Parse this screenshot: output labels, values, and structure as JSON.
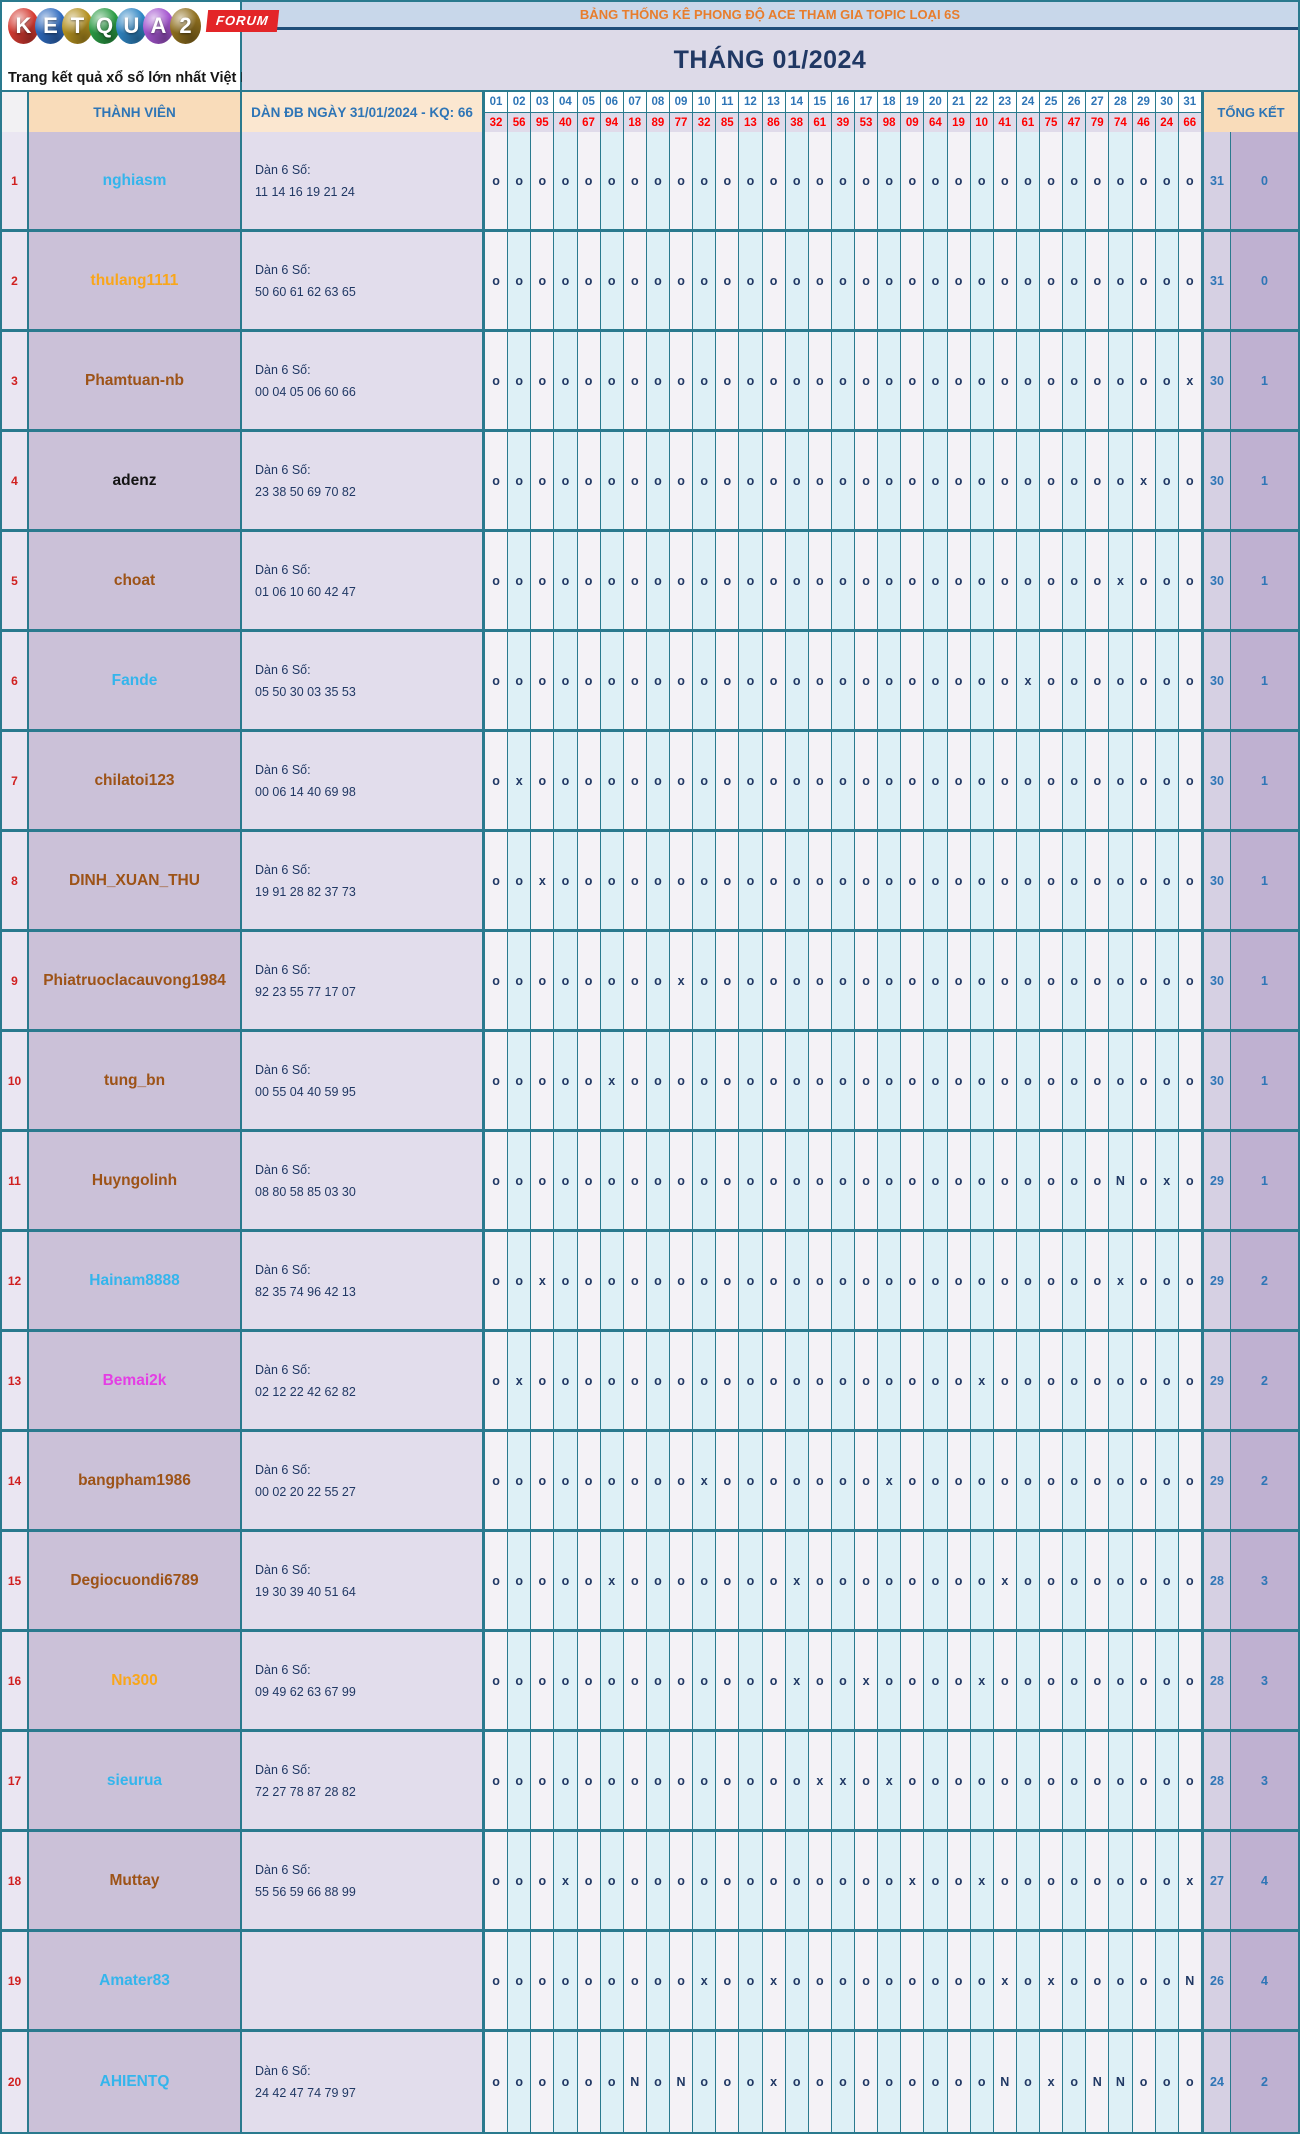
{
  "logo": {
    "letters": [
      {
        "ch": "K",
        "color": "#d43a31"
      },
      {
        "ch": "E",
        "color": "#2f6bbf"
      },
      {
        "ch": "T",
        "color": "#b3901f"
      },
      {
        "ch": "Q",
        "color": "#2a9b44"
      },
      {
        "ch": "U",
        "color": "#2f86c4"
      },
      {
        "ch": "A",
        "color": "#a455cf"
      },
      {
        "ch": "2",
        "color": "#8f6f1e"
      }
    ],
    "forum_badge": "FORUM",
    "tagline": "Trang kết quả xổ số lớn nhất Việt Nam"
  },
  "header": {
    "banner": "BẢNG THỐNG KÊ PHONG ĐỘ ACE THAM GIA TOPIC LOẠI 6S",
    "month_title": "THÁNG 01/2024",
    "member_col_label": "THÀNH VIÊN",
    "dan_col_label": "DÀN ĐB NGÀY 31/01/2024 - KQ: 66",
    "total_col_label": "TỔNG KẾT",
    "days": [
      "01",
      "02",
      "03",
      "04",
      "05",
      "06",
      "07",
      "08",
      "09",
      "10",
      "11",
      "12",
      "13",
      "14",
      "15",
      "16",
      "17",
      "18",
      "19",
      "20",
      "21",
      "22",
      "23",
      "24",
      "25",
      "26",
      "27",
      "28",
      "29",
      "30",
      "31"
    ],
    "kq_values": [
      "32",
      "56",
      "95",
      "40",
      "67",
      "94",
      "18",
      "89",
      "77",
      "32",
      "85",
      "13",
      "86",
      "38",
      "61",
      "39",
      "53",
      "98",
      "09",
      "64",
      "19",
      "10",
      "41",
      "61",
      "75",
      "47",
      "79",
      "74",
      "46",
      "24",
      "66"
    ]
  },
  "rows": [
    {
      "num": "1",
      "name": "nghiasm",
      "color": "#34b5ec",
      "dan_label": "Dàn 6 Số:",
      "dan": "11 14 16 19 21 24",
      "marks": "ooooooooooooooooooooooooooooooo",
      "total_o": "31",
      "total_x": "0"
    },
    {
      "num": "2",
      "name": "thulang1111",
      "color": "#f9a61a",
      "dan_label": "Dàn 6 Số:",
      "dan": "50 60 61 62 63 65",
      "marks": "ooooooooooooooooooooooooooooooo",
      "total_o": "31",
      "total_x": "0"
    },
    {
      "num": "3",
      "name": "Phamtuan-nb",
      "color": "#9d5317",
      "dan_label": "Dàn 6 Số:",
      "dan": "00 04 05 06 60 66",
      "marks": "oooooooooooooooooooooooooooooox",
      "total_o": "30",
      "total_x": "1"
    },
    {
      "num": "4",
      "name": "adenz",
      "color": "#141414",
      "dan_label": "Dàn 6 Số:",
      "dan": "23 38 50 69 70 82",
      "marks": "ooooooooooooooooooooooooooooxoo",
      "total_o": "30",
      "total_x": "1"
    },
    {
      "num": "5",
      "name": "choat",
      "color": "#9d5317",
      "dan_label": "Dàn 6 Số:",
      "dan": "01 06 10 60 42 47",
      "marks": "oooooooooooooooooooooooooooxooo",
      "total_o": "30",
      "total_x": "1"
    },
    {
      "num": "6",
      "name": "Fande",
      "color": "#34b5ec",
      "dan_label": "Dàn 6 Số:",
      "dan": "05 50 30 03 35 53",
      "marks": "oooooooooooooooooooooooxooooooo",
      "total_o": "30",
      "total_x": "1"
    },
    {
      "num": "7",
      "name": "chilatoi123",
      "color": "#9d5317",
      "dan_label": "Dàn 6 Số:",
      "dan": "00 06 14 40 69 98",
      "marks": "oxooooooooooooooooooooooooooooo",
      "total_o": "30",
      "total_x": "1"
    },
    {
      "num": "8",
      "name": "DINH_XUAN_THU",
      "color": "#9d5317",
      "dan_label": "Dàn 6 Số:",
      "dan": "19 91 28 82 37 73",
      "marks": "ooxoooooooooooooooooooooooooooo",
      "total_o": "30",
      "total_x": "1"
    },
    {
      "num": "9",
      "name": "Phiatruoclacauvong1984",
      "color": "#9d5317",
      "dan_label": "Dàn 6 Số:",
      "dan": "92 23 55 77 17 07",
      "marks": "ooooooooxoooooooooooooooooooooo",
      "total_o": "30",
      "total_x": "1"
    },
    {
      "num": "10",
      "name": "tung_bn",
      "color": "#9d5317",
      "dan_label": "Dàn 6 Số:",
      "dan": "00 55 04 40 59 95",
      "marks": "oooooxooooooooooooooooooooooooo",
      "total_o": "30",
      "total_x": "1"
    },
    {
      "num": "11",
      "name": "Huyngolinh",
      "color": "#9d5317",
      "dan_label": "Dàn 6 Số:",
      "dan": "08 80 58 85 03 30",
      "marks": "oooooooooooooooooooooooooooNoxo",
      "total_o": "29",
      "total_x": "1"
    },
    {
      "num": "12",
      "name": "Hainam8888",
      "color": "#34b5ec",
      "dan_label": "Dàn 6 Số:",
      "dan": "82 35 74 96 42 13",
      "marks": "ooxooooooooooooooooooooooooxooo",
      "total_o": "29",
      "total_x": "2"
    },
    {
      "num": "13",
      "name": "Bemai2k",
      "color": "#e43de4",
      "dan_label": "Dàn 6 Số:",
      "dan": "02 12 22 42 62 82",
      "marks": "oxoooooooooooooooooooxooooooooo",
      "total_o": "29",
      "total_x": "2"
    },
    {
      "num": "14",
      "name": "bangpham1986",
      "color": "#9d5317",
      "dan_label": "Dàn 6 Số:",
      "dan": "00 02 20 22 55 27",
      "marks": "oooooooooxoooooooxooooooooooooo",
      "total_o": "29",
      "total_x": "2"
    },
    {
      "num": "15",
      "name": "Degiocuondi6789",
      "color": "#9d5317",
      "dan_label": "Dàn 6 Số:",
      "dan": "19 30 39 40 51 64",
      "marks": "oooooxoooooooxooooooooxoooooooo",
      "total_o": "28",
      "total_x": "3"
    },
    {
      "num": "16",
      "name": "Nn300",
      "color": "#f9a61a",
      "dan_label": "Dàn 6 Số:",
      "dan": "09 49 62 63 67 99",
      "marks": "oooooooooooooxooxooooxooooooooo",
      "total_o": "28",
      "total_x": "3"
    },
    {
      "num": "17",
      "name": "sieurua",
      "color": "#34b5ec",
      "dan_label": "Dàn 6 Số:",
      "dan": "72 27 78 87 28 82",
      "marks": "ooooooooooooooxxoxooooooooooooo",
      "total_o": "28",
      "total_x": "3"
    },
    {
      "num": "18",
      "name": "Muttay",
      "color": "#9d5317",
      "dan_label": "Dàn 6 Số:",
      "dan": "55 56 59 66 88 99",
      "marks": "oooxooooooooooooooxooxoooooooox",
      "total_o": "27",
      "total_x": "4"
    },
    {
      "num": "19",
      "name": "Amater83",
      "color": "#34b5ec",
      "dan_label": "",
      "dan": "",
      "marks": "oooooooooxooxoooooooooxoxoooooN",
      "total_o": "26",
      "total_x": "4"
    },
    {
      "num": "20",
      "name": "AHIENTQ",
      "color": "#34b5ec",
      "dan_label": "Dàn 6 Số:",
      "dan": "24 42 47 74 79 97",
      "marks": "ooooooNoNoooxoooooooooNoxoNNooo",
      "total_o": "24",
      "total_x": "2"
    }
  ]
}
